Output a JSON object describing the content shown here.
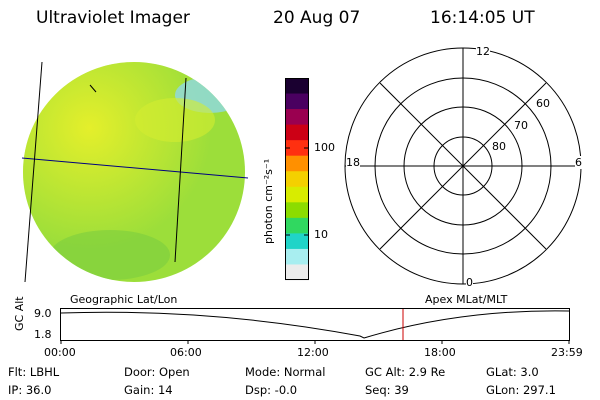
{
  "header": {
    "instrument": "Ultraviolet Imager",
    "date": "20 Aug 07",
    "time": "16:14:05 UT"
  },
  "colorbar": {
    "unit_label": "photon cm⁻²s⁻¹",
    "tick_100": "100",
    "tick_10": "10",
    "colors": [
      "#1a0030",
      "#4a0060",
      "#9a0050",
      "#cc0015",
      "#ff3010",
      "#ff9000",
      "#f4d000",
      "#d8ec00",
      "#8cdc00",
      "#30d860",
      "#20d4c8",
      "#a8eef0",
      "#ececec"
    ]
  },
  "globe": {
    "fill_color": "#9cde3a",
    "bright_color": "#e8f02a",
    "grid_color": "#000080"
  },
  "polar_plot": {
    "mlt_12": "12",
    "mlt_18": "18",
    "mlt_6": "6",
    "mlt_0": "0",
    "lat_60": "60",
    "lat_70": "70",
    "lat_80": "80"
  },
  "coords": {
    "geographic": "Geographic Lat/Lon",
    "apex": "Apex  MLat/MLT"
  },
  "altitude_plot": {
    "ylabel": "GC Alt",
    "ytick_top": "9.0",
    "ytick_bottom": "1.8",
    "xticks": [
      "00:00",
      "06:00",
      "12:00",
      "18:00",
      "23:59"
    ],
    "marker_color": "#cc0000"
  },
  "status": {
    "flt": "Flt: LBHL",
    "ip": "IP: 36.0",
    "door": "Door: Open",
    "gain": "Gain: 14",
    "mode": "Mode: Normal",
    "dsp": "Dsp:   -0.0",
    "gcalt": "GC Alt: 2.9 Re",
    "seq": "Seq: 39",
    "glat": "GLat:    3.0",
    "glon": "GLon: 297.1"
  }
}
